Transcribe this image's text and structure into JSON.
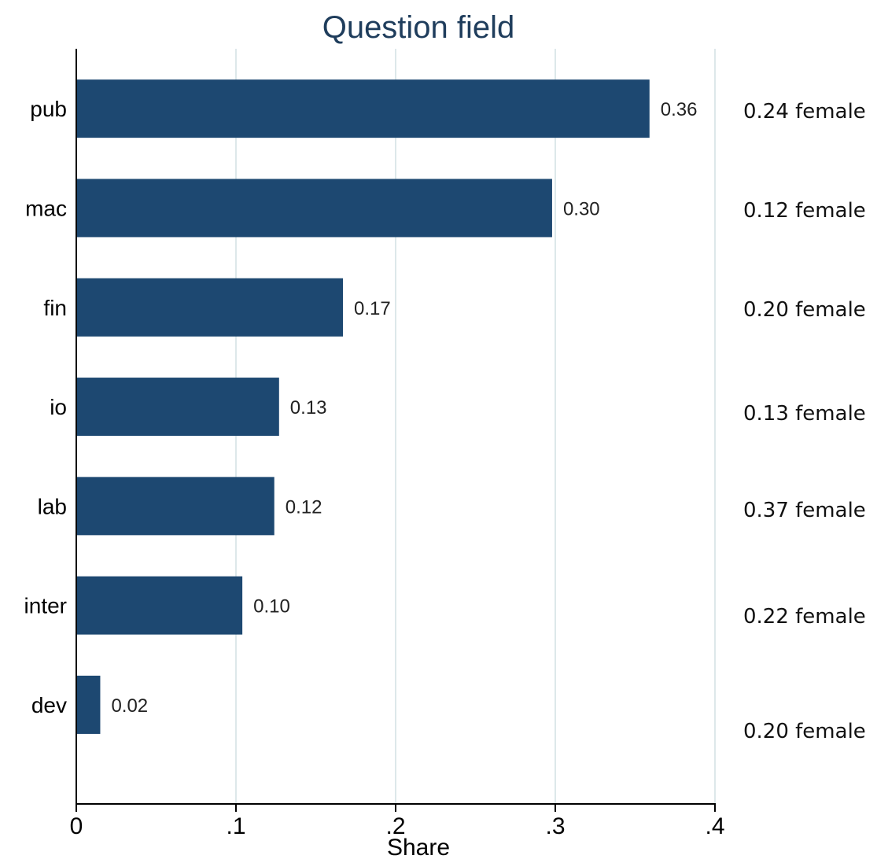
{
  "chart_data": {
    "type": "bar",
    "orientation": "horizontal",
    "title": "Question field",
    "xlabel": "Share",
    "ylabel": "",
    "categories": [
      "pub",
      "mac",
      "fin",
      "io",
      "lab",
      "inter",
      "dev"
    ],
    "values": [
      0.359,
      0.298,
      0.167,
      0.127,
      0.124,
      0.104,
      0.015
    ],
    "value_labels": [
      "0.36",
      "0.30",
      "0.17",
      "0.13",
      "0.12",
      "0.10",
      "0.02"
    ],
    "female_notes": [
      "0.24 female",
      "0.12 female",
      "0.20 female",
      "0.13 female",
      "0.37 female",
      "0.22 female",
      "0.20 female"
    ],
    "xlim": [
      0,
      0.4
    ],
    "xticks": [
      0,
      0.1,
      0.2,
      0.3,
      0.4
    ],
    "xtick_labels": [
      "0",
      ".1",
      ".2",
      ".3",
      ".4"
    ],
    "grid": "vertical",
    "bar_color": "#1d4871",
    "title_color": "#1f3d5c",
    "grid_color": "#dde8ea"
  }
}
